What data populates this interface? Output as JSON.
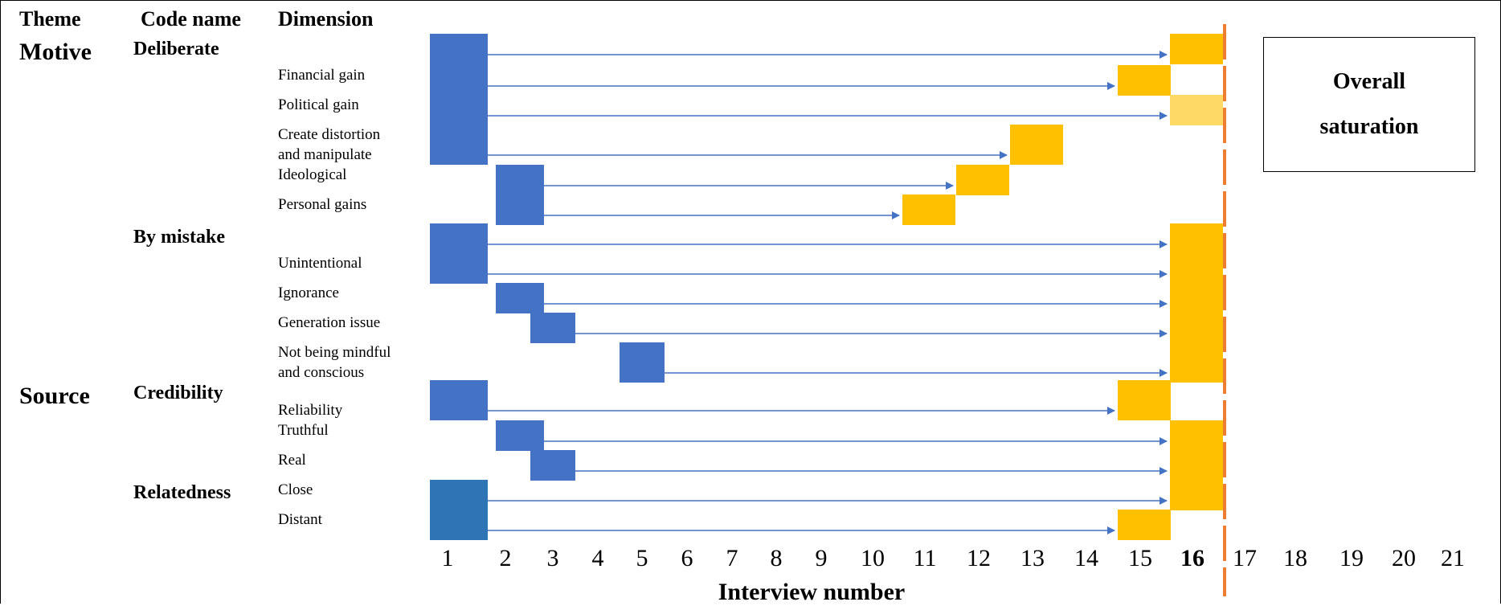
{
  "headers": {
    "theme": "Theme",
    "code_name": "Code name",
    "dimension": "Dimension"
  },
  "themes": [
    "Motive",
    "Source"
  ],
  "code_names": [
    "Deliberate",
    "By mistake",
    "Credibility",
    "Relatedness"
  ],
  "dimensions": [
    "Financial gain",
    "Political gain",
    "Create distortion",
    "and manipulate",
    "Ideological",
    "Personal gains",
    "Unintentional",
    "Ignorance",
    "Generation issue",
    "Not being mindful",
    "and conscious",
    "Reliability",
    "Truthful",
    "Real",
    "Close",
    "Distant"
  ],
  "saturation_box": {
    "line1": "Overall",
    "line2": "saturation"
  },
  "x_axis": {
    "label": "Interview number",
    "ticks": [
      "1",
      "2",
      "3",
      "4",
      "5",
      "6",
      "7",
      "8",
      "9",
      "10",
      "11",
      "12",
      "13",
      "14",
      "15",
      "16",
      "17",
      "18",
      "19",
      "20",
      "21"
    ],
    "bold_tick": "16"
  },
  "chart_data": {
    "type": "saturation-timeline",
    "x_domain": [
      1,
      21
    ],
    "saturation_point": 16,
    "rows": [
      {
        "label": "Deliberate",
        "first": 1,
        "last": 16
      },
      {
        "label": "Financial gain",
        "first": 1,
        "last": 15
      },
      {
        "label": "Political gain",
        "first": 1,
        "last": 16
      },
      {
        "label": "Create distortion and manipulate",
        "first": 1,
        "last": 13
      },
      {
        "label": "Ideological",
        "first": 2,
        "last": 12
      },
      {
        "label": "Personal gains",
        "first": 2,
        "last": 11
      },
      {
        "label": "By mistake",
        "first": 1,
        "last": 16
      },
      {
        "label": "Unintentional",
        "first": 1,
        "last": 16
      },
      {
        "label": "Ignorance",
        "first": 2,
        "last": 16
      },
      {
        "label": "Generation issue",
        "first": 3,
        "last": 16
      },
      {
        "label": "Not being mindful and conscious",
        "first": 5,
        "last": 16
      },
      {
        "label": "Reliability",
        "first": 1,
        "last": 15
      },
      {
        "label": "Truthful",
        "first": 2,
        "last": 16
      },
      {
        "label": "Real",
        "first": 3,
        "last": 16
      },
      {
        "label": "Close",
        "first": 1,
        "last": 16
      },
      {
        "label": "Distant",
        "first": 1,
        "last": 15
      }
    ]
  },
  "colors": {
    "first_mention": "#4472C4",
    "first_mention_alt": "#2E75B6",
    "saturation_mention": "#FFC000",
    "saturation_mention_light": "#FFD966",
    "arrow": "#4472C4",
    "saturation_line": "#ED7D31"
  }
}
